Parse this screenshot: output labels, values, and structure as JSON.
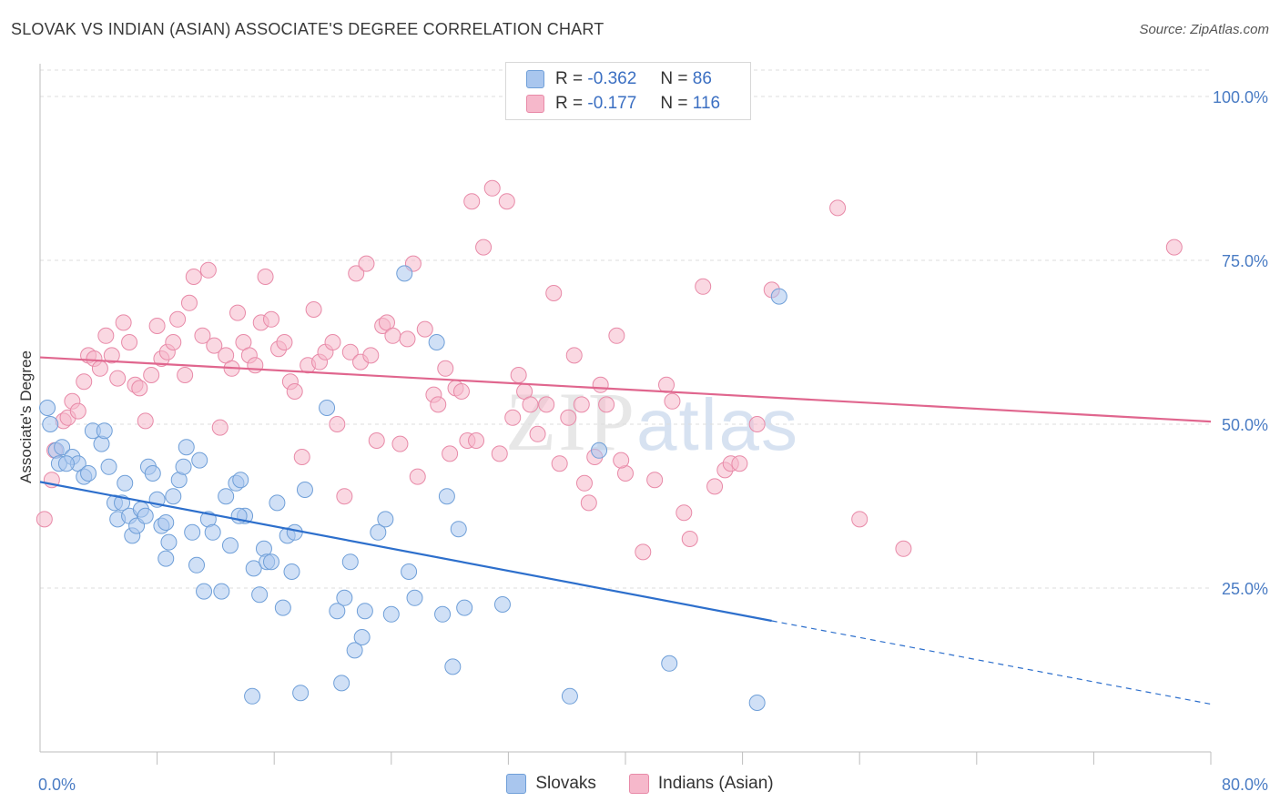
{
  "title": "SLOVAK VS INDIAN (ASIAN) ASSOCIATE'S DEGREE CORRELATION CHART",
  "source": "Source: ZipAtlas.com",
  "watermark": {
    "zip": "ZIP",
    "atlas": "atlas"
  },
  "legend": {
    "r_label": "R =",
    "n_label": "N =",
    "rows": [
      {
        "r": "-0.362",
        "n": "86",
        "color": "#a9c6ee",
        "border": "#6f9fd8"
      },
      {
        "r": "-0.177",
        "n": "116",
        "color": "#f6b8cb",
        "border": "#e88aa8"
      }
    ]
  },
  "bottom_legend": [
    "Slovaks",
    "Indians (Asian)"
  ],
  "chart_data": {
    "type": "scatter",
    "title": "SLOVAK VS INDIAN (ASIAN) ASSOCIATE'S DEGREE CORRELATION CHART",
    "xlabel": "",
    "ylabel": "Associate's Degree",
    "xlim": [
      0,
      80
    ],
    "ylim": [
      0,
      105
    ],
    "x_tick_labels": [
      "0.0%",
      "80.0%"
    ],
    "y_ticks": [
      25,
      50,
      75,
      100
    ],
    "y_tick_labels": [
      "25.0%",
      "50.0%",
      "75.0%",
      "100.0%"
    ],
    "grid": true,
    "legend_position": "top-center",
    "series": [
      {
        "name": "Slovaks",
        "color": "#a9c6ee",
        "stroke": "#6f9fd8",
        "line_color": "#2d6fcc",
        "trend": {
          "x0": 0,
          "y0": 41.2,
          "x1": 50,
          "y1": 20.0,
          "dashed_to_x": 80,
          "dashed_to_y": 7.3
        },
        "points": [
          [
            0.5,
            52.5
          ],
          [
            0.7,
            50
          ],
          [
            1.1,
            46
          ],
          [
            1.3,
            44
          ],
          [
            1.5,
            46.5
          ],
          [
            2.2,
            45
          ],
          [
            2.6,
            44
          ],
          [
            3,
            42
          ],
          [
            3.3,
            42.5
          ],
          [
            3.6,
            49
          ],
          [
            4.2,
            47
          ],
          [
            4.4,
            49
          ],
          [
            4.7,
            43.5
          ],
          [
            5.1,
            38
          ],
          [
            5.3,
            35.5
          ],
          [
            5.6,
            38
          ],
          [
            6.1,
            36
          ],
          [
            6.3,
            33
          ],
          [
            6.6,
            34.5
          ],
          [
            6.9,
            37
          ],
          [
            7.2,
            36
          ],
          [
            7.4,
            43.5
          ],
          [
            7.7,
            42.5
          ],
          [
            8.0,
            38.5
          ],
          [
            8.3,
            34.5
          ],
          [
            8.6,
            35
          ],
          [
            8.8,
            32
          ],
          [
            9.1,
            39
          ],
          [
            9.5,
            41.5
          ],
          [
            9.8,
            43.5
          ],
          [
            10.0,
            46.5
          ],
          [
            10.4,
            33.5
          ],
          [
            10.7,
            28.5
          ],
          [
            10.9,
            44.5
          ],
          [
            11.2,
            24.5
          ],
          [
            11.5,
            35.5
          ],
          [
            11.8,
            33.5
          ],
          [
            12.4,
            24.5
          ],
          [
            12.7,
            39
          ],
          [
            13.0,
            31.5
          ],
          [
            13.4,
            41
          ],
          [
            13.7,
            41.5
          ],
          [
            14.0,
            36
          ],
          [
            14.6,
            28
          ],
          [
            15.0,
            24
          ],
          [
            15.3,
            31
          ],
          [
            15.5,
            29
          ],
          [
            15.8,
            29
          ],
          [
            16.2,
            38
          ],
          [
            16.6,
            22
          ],
          [
            16.9,
            33
          ],
          [
            17.2,
            27.5
          ],
          [
            17.4,
            33.5
          ],
          [
            18.1,
            40
          ],
          [
            19.6,
            52.5
          ],
          [
            20.3,
            21.5
          ],
          [
            20.8,
            23.5
          ],
          [
            21.2,
            29
          ],
          [
            21.5,
            15.5
          ],
          [
            22.0,
            17.5
          ],
          [
            22.2,
            21.5
          ],
          [
            23.1,
            33.5
          ],
          [
            23.6,
            35.5
          ],
          [
            24.0,
            21
          ],
          [
            25.6,
            23.5
          ],
          [
            25.2,
            27.5
          ],
          [
            27.1,
            62.5
          ],
          [
            27.5,
            21
          ],
          [
            27.8,
            39
          ],
          [
            28.6,
            34
          ],
          [
            29.0,
            22
          ],
          [
            31.6,
            22.5
          ],
          [
            24.9,
            73
          ],
          [
            28.2,
            13
          ],
          [
            14.5,
            8.5
          ],
          [
            17.8,
            9
          ],
          [
            20.6,
            10.5
          ],
          [
            36.2,
            8.5
          ],
          [
            43.0,
            13.5
          ],
          [
            49.0,
            7.5
          ],
          [
            50.5,
            69.5
          ],
          [
            38.2,
            46
          ],
          [
            13.6,
            36
          ],
          [
            8.6,
            29.5
          ],
          [
            5.8,
            41
          ],
          [
            1.8,
            44
          ]
        ]
      },
      {
        "name": "Indians (Asian)",
        "color": "#f6b8cb",
        "stroke": "#e88aa8",
        "line_color": "#e0668e",
        "trend": {
          "x0": 0,
          "y0": 60.2,
          "x1": 80,
          "y1": 50.4
        },
        "points": [
          [
            0.3,
            35.5
          ],
          [
            0.8,
            41.5
          ],
          [
            1.0,
            46
          ],
          [
            1.6,
            50.5
          ],
          [
            1.9,
            51
          ],
          [
            2.2,
            53.5
          ],
          [
            2.6,
            52
          ],
          [
            3.0,
            56.5
          ],
          [
            3.3,
            60.5
          ],
          [
            3.7,
            60
          ],
          [
            4.1,
            58.5
          ],
          [
            4.5,
            63.5
          ],
          [
            4.9,
            60.5
          ],
          [
            5.3,
            57
          ],
          [
            5.7,
            65.5
          ],
          [
            6.1,
            62.5
          ],
          [
            6.5,
            56
          ],
          [
            6.8,
            55.5
          ],
          [
            7.2,
            50.5
          ],
          [
            7.6,
            57.5
          ],
          [
            8.0,
            65
          ],
          [
            8.3,
            60
          ],
          [
            8.7,
            61
          ],
          [
            9.1,
            62.5
          ],
          [
            9.4,
            66
          ],
          [
            9.9,
            57.5
          ],
          [
            10.2,
            68.5
          ],
          [
            10.5,
            72.5
          ],
          [
            11.1,
            63.5
          ],
          [
            11.5,
            73.5
          ],
          [
            11.9,
            62
          ],
          [
            12.3,
            49.5
          ],
          [
            12.7,
            60.5
          ],
          [
            13.1,
            58.5
          ],
          [
            13.5,
            67
          ],
          [
            13.9,
            62.5
          ],
          [
            14.3,
            60.5
          ],
          [
            14.7,
            59
          ],
          [
            15.1,
            65.5
          ],
          [
            15.4,
            72.5
          ],
          [
            15.8,
            66
          ],
          [
            16.3,
            61.5
          ],
          [
            16.7,
            62.5
          ],
          [
            17.1,
            56.5
          ],
          [
            17.4,
            55
          ],
          [
            17.9,
            45
          ],
          [
            18.3,
            59
          ],
          [
            18.7,
            67.5
          ],
          [
            19.1,
            59.5
          ],
          [
            19.5,
            61
          ],
          [
            20.0,
            62.5
          ],
          [
            20.3,
            50
          ],
          [
            20.8,
            39
          ],
          [
            21.2,
            61
          ],
          [
            21.6,
            73
          ],
          [
            21.9,
            59.5
          ],
          [
            22.3,
            74.5
          ],
          [
            22.6,
            60.5
          ],
          [
            23.0,
            47.5
          ],
          [
            23.4,
            65
          ],
          [
            23.7,
            65.5
          ],
          [
            24.1,
            63.5
          ],
          [
            24.6,
            47
          ],
          [
            25.1,
            63
          ],
          [
            25.5,
            74.5
          ],
          [
            25.8,
            42
          ],
          [
            26.3,
            64.5
          ],
          [
            26.9,
            54.5
          ],
          [
            27.2,
            53
          ],
          [
            27.7,
            58.5
          ],
          [
            28.0,
            45.5
          ],
          [
            28.4,
            55.5
          ],
          [
            28.8,
            55
          ],
          [
            29.2,
            47.5
          ],
          [
            29.8,
            47.5
          ],
          [
            29.5,
            84
          ],
          [
            30.3,
            77
          ],
          [
            30.9,
            86
          ],
          [
            31.4,
            45.5
          ],
          [
            31.9,
            84
          ],
          [
            32.3,
            51
          ],
          [
            32.7,
            57.5
          ],
          [
            33.1,
            55
          ],
          [
            33.5,
            53
          ],
          [
            34.0,
            48.5
          ],
          [
            34.6,
            53
          ],
          [
            35.1,
            70
          ],
          [
            35.5,
            44
          ],
          [
            36.1,
            51
          ],
          [
            36.5,
            60.5
          ],
          [
            37.0,
            53
          ],
          [
            37.2,
            41
          ],
          [
            37.5,
            38
          ],
          [
            37.9,
            45
          ],
          [
            38.3,
            56
          ],
          [
            38.7,
            53
          ],
          [
            39.4,
            63.5
          ],
          [
            40.0,
            42.5
          ],
          [
            39.7,
            44.5
          ],
          [
            41.2,
            30.5
          ],
          [
            42.0,
            41.5
          ],
          [
            42.8,
            56
          ],
          [
            43.2,
            53.5
          ],
          [
            44.0,
            36.5
          ],
          [
            44.4,
            32.5
          ],
          [
            45.3,
            71
          ],
          [
            46.1,
            40.5
          ],
          [
            46.8,
            43
          ],
          [
            47.2,
            44
          ],
          [
            47.8,
            44
          ],
          [
            49.0,
            50
          ],
          [
            50.0,
            70.5
          ],
          [
            54.5,
            83
          ],
          [
            56.0,
            35.5
          ],
          [
            59.0,
            31
          ],
          [
            77.5,
            77
          ]
        ]
      }
    ]
  }
}
